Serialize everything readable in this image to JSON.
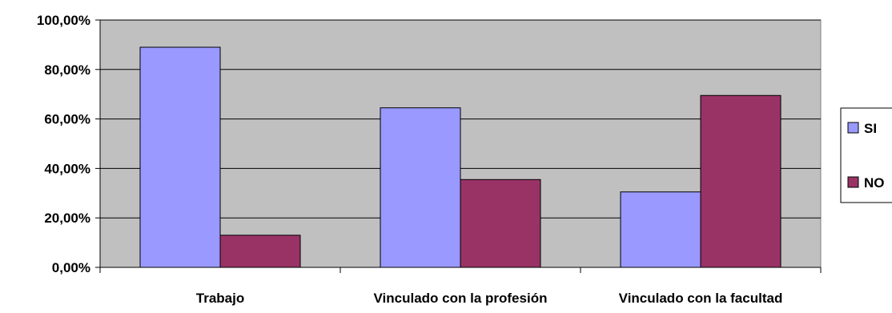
{
  "chart_data": {
    "type": "bar",
    "title": "",
    "xlabel": "",
    "ylabel": "",
    "categories": [
      "Trabajo",
      "Vinculado con la profesión",
      "Vinculado con la facultad"
    ],
    "series": [
      {
        "name": "SI",
        "values": [
          89.0,
          64.5,
          30.5
        ],
        "color": "#9999ff"
      },
      {
        "name": "NO",
        "values": [
          13.0,
          35.5,
          69.5
        ],
        "color": "#993366"
      }
    ],
    "ylim": [
      0,
      100
    ],
    "yticks": [
      0,
      20,
      40,
      60,
      80,
      100
    ],
    "ytick_labels": [
      "0,00%",
      "20,00%",
      "40,00%",
      "60,00%",
      "80,00%",
      "100,00%"
    ],
    "grid": true,
    "plot_background": "#c0c0c0",
    "legend_position": "right"
  }
}
